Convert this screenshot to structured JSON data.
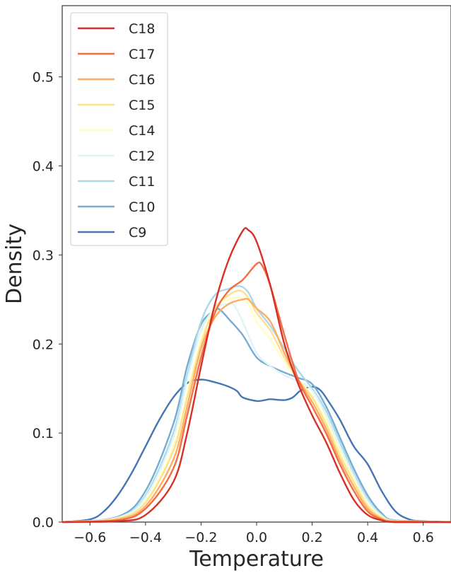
{
  "chart_data": {
    "type": "line",
    "title": "",
    "xlabel": "Temperature",
    "ylabel": "Density",
    "xlim": [
      -0.7,
      0.7
    ],
    "ylim": [
      0.0,
      0.58
    ],
    "xticks": [
      "−0.6",
      "−0.4",
      "−0.2",
      "0.0",
      "0.2",
      "0.4",
      "0.6"
    ],
    "xtick_values": [
      -0.6,
      -0.4,
      -0.2,
      0.0,
      0.2,
      0.4,
      0.6
    ],
    "yticks": [
      "0.0",
      "0.1",
      "0.2",
      "0.3",
      "0.4",
      "0.5"
    ],
    "ytick_values": [
      0.0,
      0.1,
      0.2,
      0.3,
      0.4,
      0.5
    ],
    "grid": false,
    "legend_position": "top-left",
    "series": [
      {
        "name": "C18",
        "color": "#d73027",
        "points": [
          [
            -0.7,
            0
          ],
          [
            -0.5,
            0.001
          ],
          [
            -0.4,
            0.008
          ],
          [
            -0.3,
            0.045
          ],
          [
            -0.25,
            0.1
          ],
          [
            -0.2,
            0.175
          ],
          [
            -0.15,
            0.245
          ],
          [
            -0.1,
            0.295
          ],
          [
            -0.05,
            0.327
          ],
          [
            -0.03,
            0.328
          ],
          [
            0.0,
            0.315
          ],
          [
            0.05,
            0.265
          ],
          [
            0.1,
            0.2
          ],
          [
            0.15,
            0.155
          ],
          [
            0.2,
            0.12
          ],
          [
            0.25,
            0.09
          ],
          [
            0.3,
            0.055
          ],
          [
            0.35,
            0.025
          ],
          [
            0.4,
            0.008
          ],
          [
            0.45,
            0.002
          ],
          [
            0.5,
            0
          ],
          [
            0.7,
            0
          ]
        ]
      },
      {
        "name": "C17",
        "color": "#f46d43",
        "points": [
          [
            -0.7,
            0
          ],
          [
            -0.5,
            0.002
          ],
          [
            -0.4,
            0.015
          ],
          [
            -0.3,
            0.06
          ],
          [
            -0.25,
            0.12
          ],
          [
            -0.2,
            0.185
          ],
          [
            -0.15,
            0.235
          ],
          [
            -0.1,
            0.26
          ],
          [
            -0.05,
            0.272
          ],
          [
            0.0,
            0.29
          ],
          [
            0.02,
            0.288
          ],
          [
            0.05,
            0.265
          ],
          [
            0.1,
            0.21
          ],
          [
            0.15,
            0.16
          ],
          [
            0.2,
            0.13
          ],
          [
            0.25,
            0.1
          ],
          [
            0.3,
            0.065
          ],
          [
            0.35,
            0.035
          ],
          [
            0.4,
            0.012
          ],
          [
            0.45,
            0.003
          ],
          [
            0.5,
            0
          ],
          [
            0.7,
            0
          ]
        ]
      },
      {
        "name": "C16",
        "color": "#fdae61",
        "points": [
          [
            -0.7,
            0
          ],
          [
            -0.5,
            0.003
          ],
          [
            -0.4,
            0.018
          ],
          [
            -0.3,
            0.07
          ],
          [
            -0.25,
            0.13
          ],
          [
            -0.2,
            0.195
          ],
          [
            -0.15,
            0.23
          ],
          [
            -0.1,
            0.245
          ],
          [
            -0.05,
            0.25
          ],
          [
            -0.03,
            0.25
          ],
          [
            0.0,
            0.24
          ],
          [
            0.05,
            0.225
          ],
          [
            0.1,
            0.19
          ],
          [
            0.15,
            0.16
          ],
          [
            0.2,
            0.135
          ],
          [
            0.25,
            0.105
          ],
          [
            0.3,
            0.07
          ],
          [
            0.35,
            0.04
          ],
          [
            0.4,
            0.015
          ],
          [
            0.45,
            0.004
          ],
          [
            0.5,
            0.001
          ],
          [
            0.7,
            0
          ]
        ]
      },
      {
        "name": "C15",
        "color": "#fee090",
        "points": [
          [
            -0.7,
            0
          ],
          [
            -0.5,
            0.004
          ],
          [
            -0.4,
            0.022
          ],
          [
            -0.3,
            0.08
          ],
          [
            -0.25,
            0.14
          ],
          [
            -0.2,
            0.2
          ],
          [
            -0.15,
            0.24
          ],
          [
            -0.1,
            0.255
          ],
          [
            -0.06,
            0.26
          ],
          [
            -0.03,
            0.252
          ],
          [
            0.0,
            0.235
          ],
          [
            0.05,
            0.215
          ],
          [
            0.1,
            0.185
          ],
          [
            0.15,
            0.16
          ],
          [
            0.2,
            0.14
          ],
          [
            0.25,
            0.11
          ],
          [
            0.3,
            0.075
          ],
          [
            0.35,
            0.045
          ],
          [
            0.4,
            0.018
          ],
          [
            0.45,
            0.005
          ],
          [
            0.5,
            0.001
          ],
          [
            0.7,
            0
          ]
        ]
      },
      {
        "name": "C14",
        "color": "#ffffbf",
        "points": [
          [
            -0.7,
            0
          ],
          [
            -0.5,
            0.004
          ],
          [
            -0.4,
            0.024
          ],
          [
            -0.3,
            0.085
          ],
          [
            -0.25,
            0.145
          ],
          [
            -0.2,
            0.205
          ],
          [
            -0.15,
            0.24
          ],
          [
            -0.1,
            0.25
          ],
          [
            -0.06,
            0.252
          ],
          [
            -0.03,
            0.245
          ],
          [
            0.0,
            0.225
          ],
          [
            0.05,
            0.205
          ],
          [
            0.1,
            0.18
          ],
          [
            0.15,
            0.16
          ],
          [
            0.2,
            0.142
          ],
          [
            0.25,
            0.115
          ],
          [
            0.3,
            0.08
          ],
          [
            0.35,
            0.048
          ],
          [
            0.4,
            0.02
          ],
          [
            0.45,
            0.006
          ],
          [
            0.5,
            0.001
          ],
          [
            0.7,
            0
          ]
        ]
      },
      {
        "name": "C12",
        "color": "#e0f3f8",
        "points": [
          [
            -0.7,
            0
          ],
          [
            -0.5,
            0.005
          ],
          [
            -0.4,
            0.028
          ],
          [
            -0.3,
            0.095
          ],
          [
            -0.25,
            0.16
          ],
          [
            -0.2,
            0.215
          ],
          [
            -0.15,
            0.24
          ],
          [
            -0.1,
            0.245
          ],
          [
            -0.08,
            0.243
          ],
          [
            -0.05,
            0.225
          ],
          [
            0.0,
            0.19
          ],
          [
            0.05,
            0.175
          ],
          [
            0.1,
            0.165
          ],
          [
            0.15,
            0.158
          ],
          [
            0.2,
            0.148
          ],
          [
            0.25,
            0.12
          ],
          [
            0.3,
            0.085
          ],
          [
            0.35,
            0.052
          ],
          [
            0.4,
            0.024
          ],
          [
            0.45,
            0.007
          ],
          [
            0.5,
            0.001
          ],
          [
            0.7,
            0
          ]
        ]
      },
      {
        "name": "C11",
        "color": "#abd9e9",
        "points": [
          [
            -0.7,
            0
          ],
          [
            -0.5,
            0.005
          ],
          [
            -0.4,
            0.03
          ],
          [
            -0.3,
            0.1
          ],
          [
            -0.25,
            0.165
          ],
          [
            -0.2,
            0.225
          ],
          [
            -0.15,
            0.255
          ],
          [
            -0.1,
            0.262
          ],
          [
            -0.06,
            0.265
          ],
          [
            -0.03,
            0.258
          ],
          [
            0.0,
            0.24
          ],
          [
            0.05,
            0.22
          ],
          [
            0.1,
            0.195
          ],
          [
            0.15,
            0.17
          ],
          [
            0.2,
            0.15
          ],
          [
            0.25,
            0.125
          ],
          [
            0.3,
            0.09
          ],
          [
            0.35,
            0.055
          ],
          [
            0.4,
            0.026
          ],
          [
            0.45,
            0.008
          ],
          [
            0.5,
            0.002
          ],
          [
            0.7,
            0
          ]
        ]
      },
      {
        "name": "C10",
        "color": "#74add1",
        "points": [
          [
            -0.7,
            0
          ],
          [
            -0.5,
            0.006
          ],
          [
            -0.4,
            0.035
          ],
          [
            -0.3,
            0.11
          ],
          [
            -0.25,
            0.175
          ],
          [
            -0.2,
            0.222
          ],
          [
            -0.15,
            0.238
          ],
          [
            -0.13,
            0.238
          ],
          [
            -0.1,
            0.228
          ],
          [
            -0.05,
            0.21
          ],
          [
            0.0,
            0.185
          ],
          [
            0.05,
            0.175
          ],
          [
            0.1,
            0.168
          ],
          [
            0.15,
            0.162
          ],
          [
            0.2,
            0.155
          ],
          [
            0.25,
            0.13
          ],
          [
            0.3,
            0.095
          ],
          [
            0.35,
            0.06
          ],
          [
            0.4,
            0.03
          ],
          [
            0.45,
            0.01
          ],
          [
            0.5,
            0.002
          ],
          [
            0.7,
            0
          ]
        ]
      },
      {
        "name": "C9",
        "color": "#4575b4",
        "points": [
          [
            -0.7,
            0
          ],
          [
            -0.6,
            0.003
          ],
          [
            -0.55,
            0.012
          ],
          [
            -0.5,
            0.03
          ],
          [
            -0.45,
            0.055
          ],
          [
            -0.4,
            0.085
          ],
          [
            -0.35,
            0.115
          ],
          [
            -0.3,
            0.14
          ],
          [
            -0.25,
            0.156
          ],
          [
            -0.2,
            0.16
          ],
          [
            -0.15,
            0.157
          ],
          [
            -0.1,
            0.152
          ],
          [
            -0.07,
            0.147
          ],
          [
            -0.05,
            0.14
          ],
          [
            0.0,
            0.136
          ],
          [
            0.03,
            0.137
          ],
          [
            0.05,
            0.138
          ],
          [
            0.1,
            0.137
          ],
          [
            0.13,
            0.14
          ],
          [
            0.16,
            0.148
          ],
          [
            0.2,
            0.152
          ],
          [
            0.23,
            0.148
          ],
          [
            0.26,
            0.135
          ],
          [
            0.3,
            0.115
          ],
          [
            0.35,
            0.085
          ],
          [
            0.4,
            0.065
          ],
          [
            0.45,
            0.035
          ],
          [
            0.5,
            0.012
          ],
          [
            0.55,
            0.003
          ],
          [
            0.6,
            0.001
          ],
          [
            0.7,
            0
          ]
        ]
      }
    ]
  }
}
